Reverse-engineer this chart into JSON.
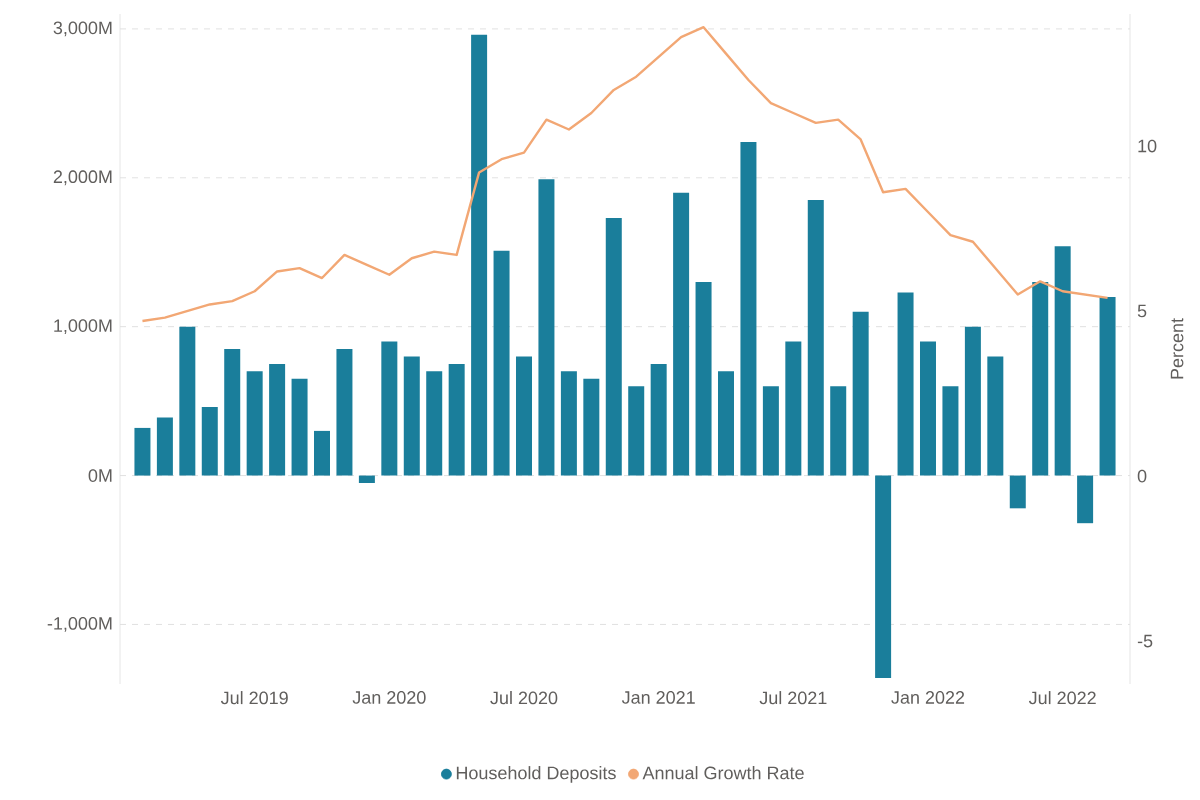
{
  "chart_data": {
    "type": "bar",
    "x": [
      "2019-02",
      "2019-03",
      "2019-04",
      "2019-05",
      "2019-06",
      "2019-07",
      "2019-08",
      "2019-09",
      "2019-10",
      "2019-11",
      "2019-12",
      "2020-01",
      "2020-02",
      "2020-03",
      "2020-04",
      "2020-05",
      "2020-06",
      "2020-07",
      "2020-08",
      "2020-09",
      "2020-10",
      "2020-11",
      "2020-12",
      "2021-01",
      "2021-02",
      "2021-03",
      "2021-04",
      "2021-05",
      "2021-06",
      "2021-07",
      "2021-08",
      "2021-09",
      "2021-10",
      "2021-11",
      "2021-12",
      "2022-01",
      "2022-02",
      "2022-03",
      "2022-04",
      "2022-05",
      "2022-06",
      "2022-07",
      "2022-08",
      "2022-09"
    ],
    "series": [
      {
        "name": "Household Deposits",
        "color": "#1a7e9b",
        "values": [
          320,
          390,
          1000,
          460,
          850,
          700,
          750,
          650,
          300,
          850,
          -50,
          900,
          800,
          700,
          750,
          2960,
          1510,
          800,
          1990,
          700,
          650,
          1730,
          600,
          750,
          1900,
          1300,
          700,
          2240,
          600,
          900,
          1850,
          600,
          1100,
          -1360,
          1230,
          900,
          600,
          1000,
          800,
          -220,
          1300,
          1540,
          -320,
          1200
        ]
      },
      {
        "name": "Annual Growth Rate",
        "type": "line",
        "axis": "y2",
        "color": "#f2a774",
        "values": [
          4.7,
          4.8,
          5.0,
          5.2,
          5.3,
          5.6,
          6.2,
          6.3,
          6.0,
          6.7,
          6.4,
          6.1,
          6.6,
          6.8,
          6.7,
          9.2,
          9.6,
          9.8,
          10.8,
          10.5,
          11.0,
          11.7,
          12.1,
          12.7,
          13.3,
          13.6,
          12.8,
          12.0,
          11.3,
          11.0,
          10.7,
          10.8,
          10.2,
          8.6,
          8.7,
          8.0,
          7.3,
          7.1,
          6.3,
          5.5,
          5.9,
          5.6,
          5.5,
          5.4
        ]
      }
    ],
    "y2label": "Percent",
    "xlim": [
      "2019-01",
      "2022-10"
    ],
    "xticks": [
      {
        "value": "2019-07",
        "label": "Jul 2019"
      },
      {
        "value": "2020-01",
        "label": "Jan 2020"
      },
      {
        "value": "2020-07",
        "label": "Jul 2020"
      },
      {
        "value": "2021-01",
        "label": "Jan 2021"
      },
      {
        "value": "2021-07",
        "label": "Jul 2021"
      },
      {
        "value": "2022-01",
        "label": "Jan 2022"
      },
      {
        "value": "2022-07",
        "label": "Jul 2022"
      }
    ],
    "ylim": [
      -1400,
      3100
    ],
    "yticks": [
      {
        "value": -1000,
        "label": "-1,000M"
      },
      {
        "value": 0,
        "label": "0M"
      },
      {
        "value": 1000,
        "label": "1,000M"
      },
      {
        "value": 2000,
        "label": "2,000M"
      },
      {
        "value": 3000,
        "label": "3,000M"
      }
    ],
    "y2lim": [
      -6.3,
      14
    ],
    "y2ticks": [
      -5,
      0,
      5,
      10
    ],
    "grid": "y",
    "legend": "bottom"
  }
}
